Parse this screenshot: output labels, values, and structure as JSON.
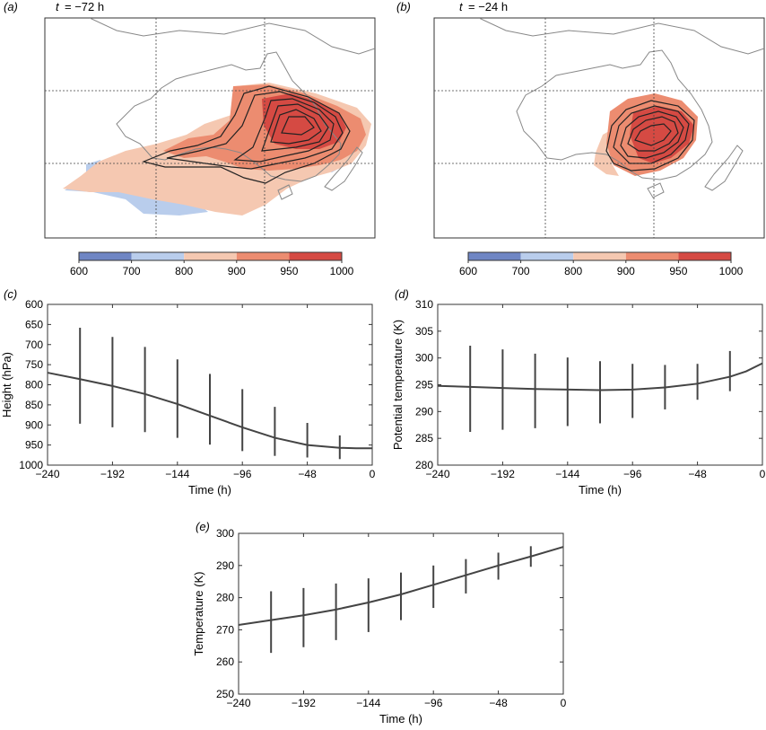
{
  "panels": {
    "a": {
      "letter": "(a)",
      "time_var": "t",
      "time_value": "= −72 h"
    },
    "b": {
      "letter": "(b)",
      "time_var": "t",
      "time_value": "= −24 h"
    },
    "c": {
      "letter": "(c)"
    },
    "d": {
      "letter": "(d)"
    },
    "e": {
      "letter": "(e)"
    }
  },
  "colorbar": {
    "ticks": [
      "600",
      "700",
      "800",
      "900",
      "950",
      "1000"
    ],
    "colors": [
      "#6f86c4",
      "#b9cdec",
      "#f5c8b1",
      "#ec8c70",
      "#d54a43"
    ]
  },
  "map_colors": {
    "land_outline": "#888888",
    "band_700_800": "#b9cdec",
    "band_800_900": "#f5c8b1",
    "band_900_950": "#ec8c70",
    "band_950_1000": "#d54a43",
    "contour": "#222222"
  },
  "chart_data": [
    {
      "panel": "c",
      "type": "line",
      "xlabel": "Time (h)",
      "ylabel": "Height (hPa)",
      "xlim": [
        -240,
        0
      ],
      "ylim": [
        1000,
        600
      ],
      "y_inverted": true,
      "xticks": [
        "−240",
        "−192",
        "−144",
        "−96",
        "−48",
        "0"
      ],
      "yticks": [
        "600",
        "650",
        "700",
        "750",
        "800",
        "850",
        "900",
        "950",
        "1000"
      ],
      "x": [
        -240,
        -216,
        -192,
        -168,
        -144,
        -120,
        -96,
        -72,
        -48,
        -24,
        -12,
        0
      ],
      "values": [
        770,
        786,
        803,
        823,
        848,
        877,
        906,
        932,
        950,
        957,
        958,
        958
      ],
      "error_bars": {
        "x": [
          -216,
          -192,
          -168,
          -144,
          -120,
          -96,
          -72,
          -48,
          -24
        ],
        "low": [
          658,
          681,
          706,
          737,
          773,
          811,
          855,
          895,
          926
        ],
        "high": [
          897,
          906,
          918,
          932,
          949,
          965,
          977,
          981,
          985
        ]
      }
    },
    {
      "panel": "d",
      "type": "line",
      "xlabel": "Time (h)",
      "ylabel": "Potential temperature (K)",
      "xlim": [
        -240,
        0
      ],
      "ylim": [
        280,
        310
      ],
      "xticks": [
        "−240",
        "−192",
        "−144",
        "−96",
        "−48",
        "0"
      ],
      "yticks": [
        "280",
        "285",
        "290",
        "295",
        "300",
        "305",
        "310"
      ],
      "x": [
        -240,
        -216,
        -192,
        -168,
        -144,
        -120,
        -96,
        -72,
        -48,
        -24,
        -12,
        0
      ],
      "values": [
        294.8,
        294.6,
        294.4,
        294.2,
        294.1,
        294.0,
        294.1,
        294.5,
        295.2,
        296.5,
        297.5,
        299.0
      ],
      "error_bars": {
        "x": [
          -216,
          -192,
          -168,
          -144,
          -120,
          -96,
          -72,
          -48,
          -24
        ],
        "low": [
          286.2,
          286.6,
          286.9,
          287.3,
          287.8,
          288.8,
          290.4,
          292.2,
          293.8
        ],
        "high": [
          302.3,
          301.6,
          300.8,
          300.1,
          299.4,
          298.9,
          298.7,
          298.9,
          301.3
        ]
      }
    },
    {
      "panel": "e",
      "type": "line",
      "xlabel": "Time (h)",
      "ylabel": "Temperature (K)",
      "xlim": [
        -240,
        0
      ],
      "ylim": [
        250,
        300
      ],
      "xticks": [
        "−240",
        "−192",
        "−144",
        "−96",
        "−48",
        "0"
      ],
      "yticks": [
        "250",
        "260",
        "270",
        "280",
        "290",
        "300"
      ],
      "x": [
        -240,
        -216,
        -192,
        -168,
        -144,
        -120,
        -96,
        -72,
        -48,
        -24,
        0
      ],
      "values": [
        271.5,
        273.0,
        274.5,
        276.3,
        278.5,
        281.0,
        284.0,
        287.0,
        290.0,
        292.8,
        295.8
      ],
      "error_bars": {
        "x": [
          -216,
          -192,
          -168,
          -144,
          -120,
          -96,
          -72,
          -48,
          -24
        ],
        "low": [
          262.8,
          264.6,
          266.8,
          269.3,
          273.0,
          276.8,
          281.3,
          285.6,
          289.6
        ],
        "high": [
          282.0,
          283.0,
          284.4,
          286.0,
          287.8,
          290.0,
          292.0,
          294.0,
          296.0
        ]
      }
    }
  ]
}
